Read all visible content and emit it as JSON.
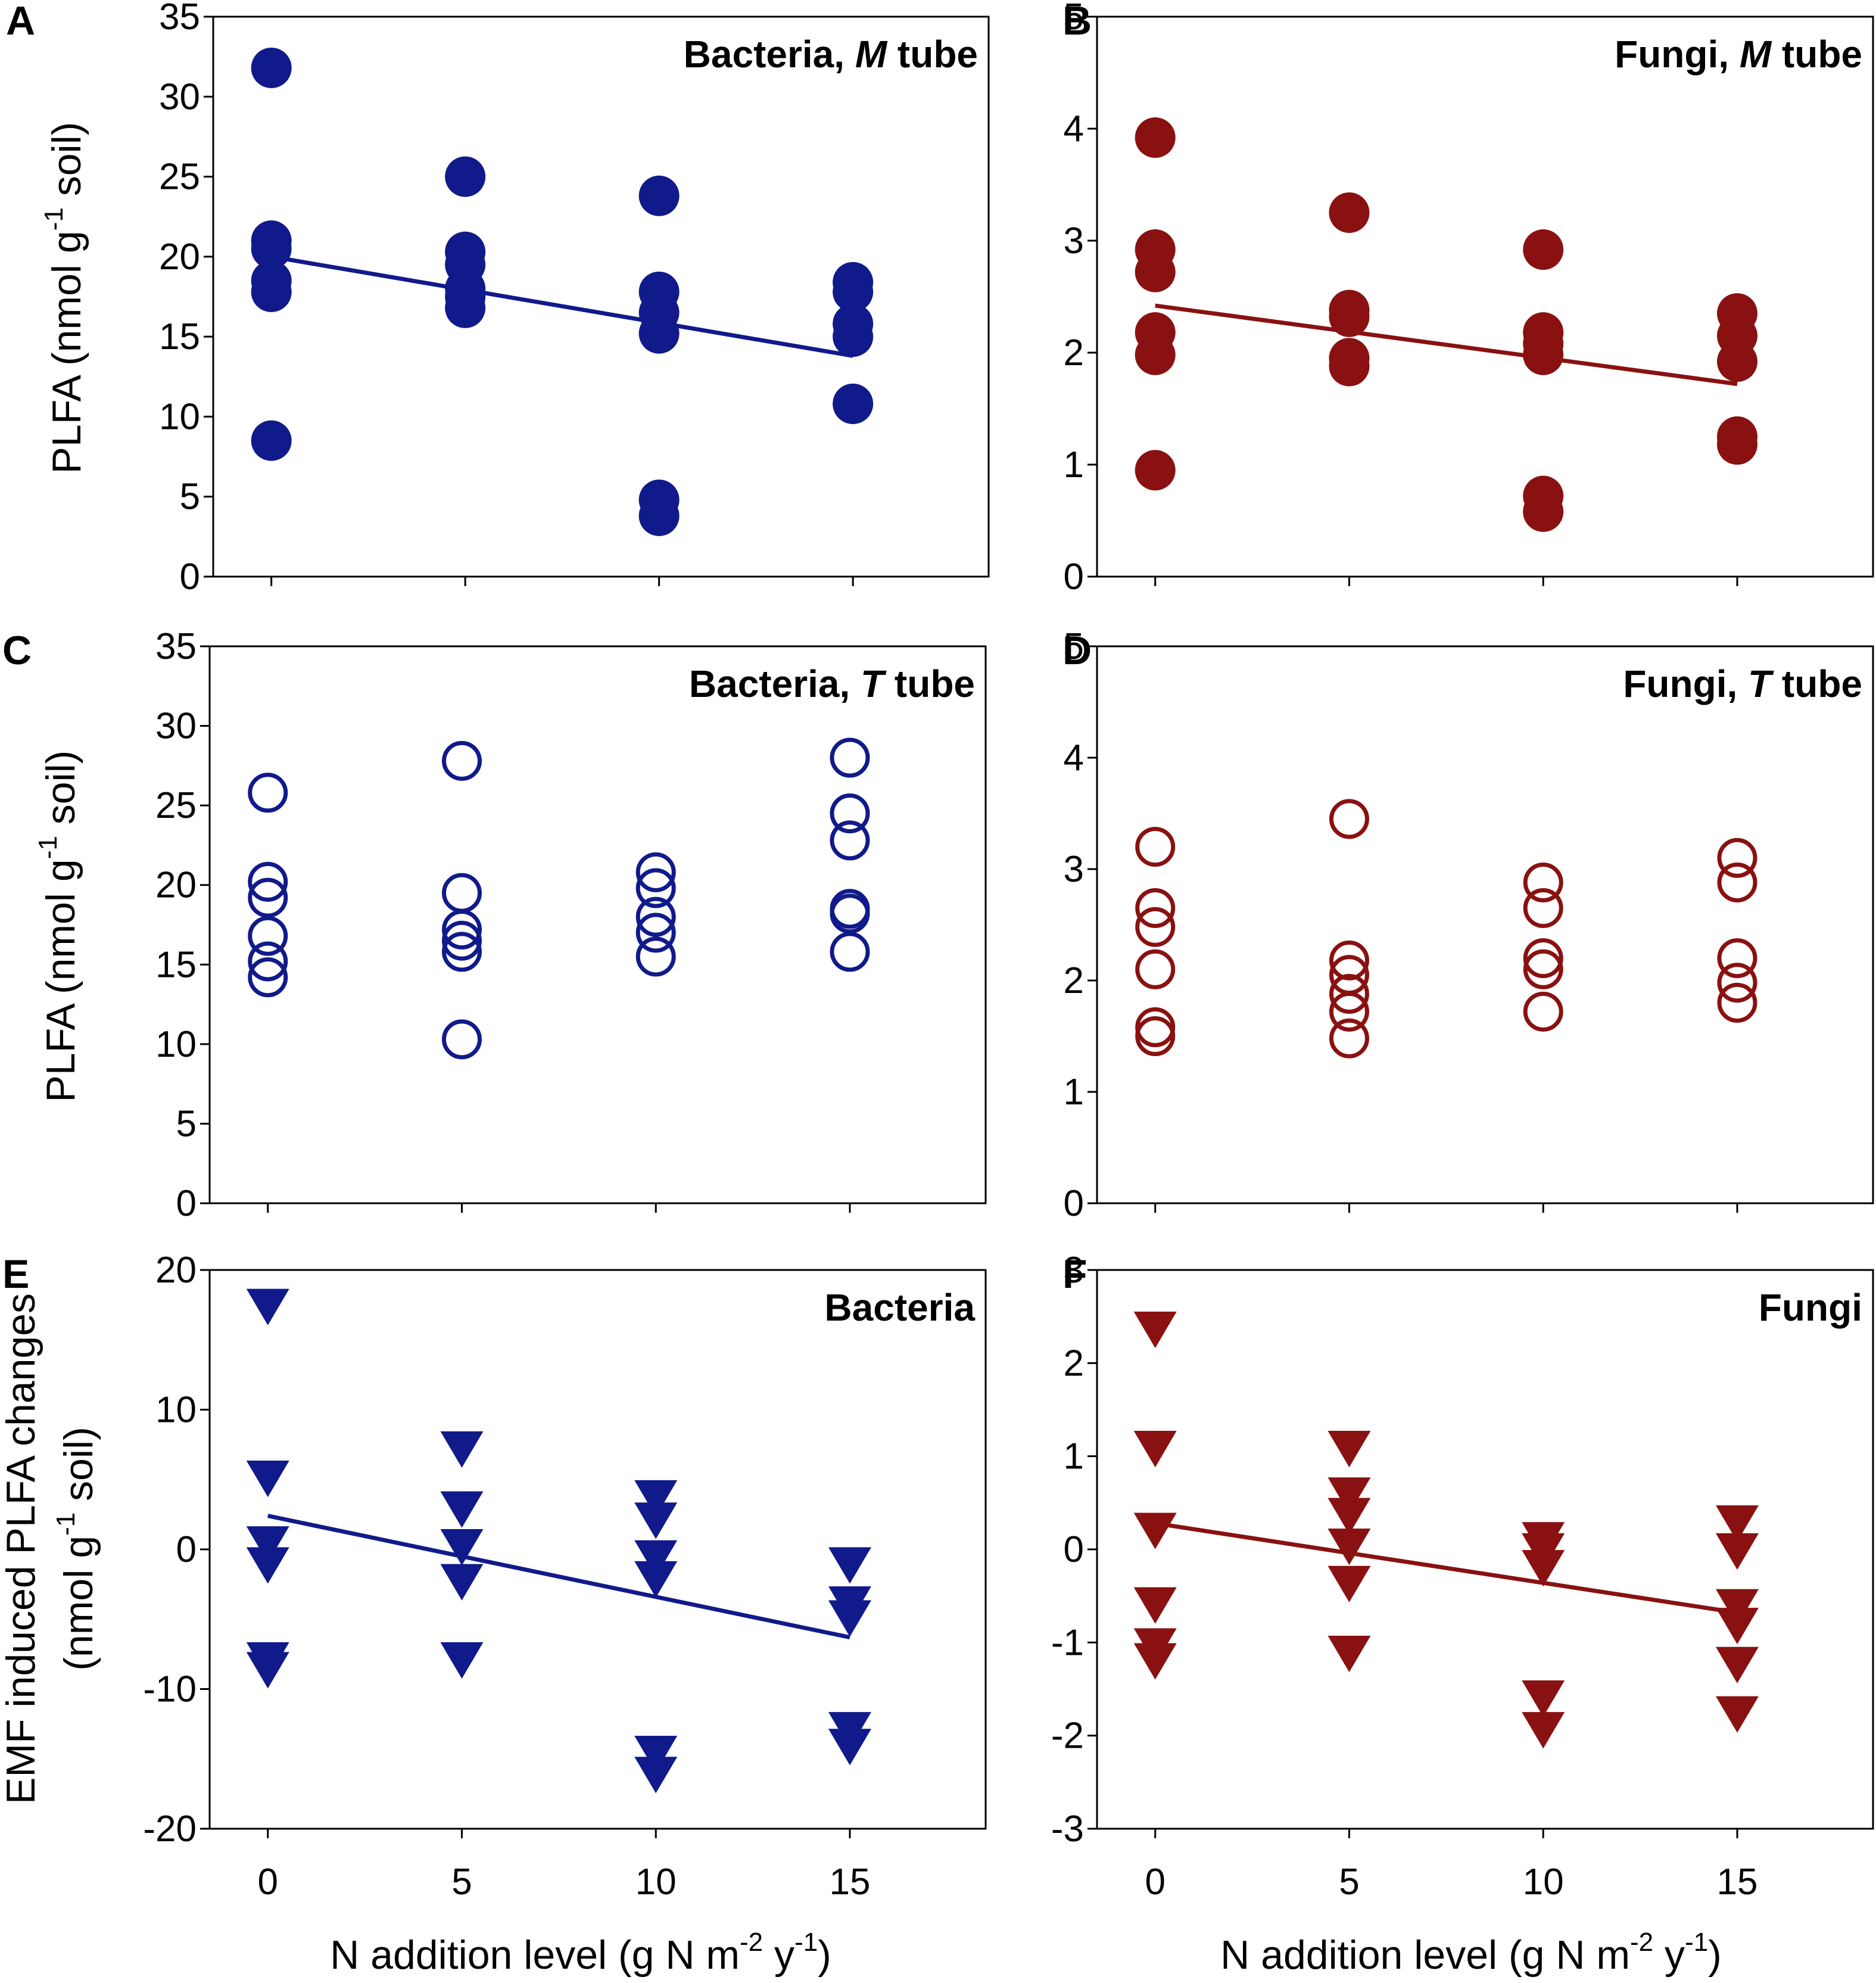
{
  "colors": {
    "bacteria": "#111a8a",
    "fungi": "#8a1111",
    "axis": "#000000"
  },
  "xlabel": {
    "main": "N addition level (g N m",
    "sup1": "-2",
    "mid": " y",
    "sup2": "-1",
    "end": ")"
  },
  "ylabel_plfa": {
    "main": "PLFA (nmol g",
    "sup": "-1",
    "end": " soil)"
  },
  "ylabel_emf": {
    "line1": "EMF induced PLFA changes",
    "main": "(nmol g",
    "sup": "-1",
    "end": " soil)"
  },
  "chart_data": [
    {
      "panel": "A",
      "type": "scatter",
      "marker": "filled-circle",
      "color": "bacteria",
      "title": "Bacteria, ",
      "title_italic": "M",
      "title_end": " tube",
      "x_ticks": [],
      "x_tick_positions": [
        0,
        5,
        10,
        15
      ],
      "ylim": [
        0,
        35
      ],
      "y_ticks": [
        0,
        5,
        10,
        15,
        20,
        25,
        30,
        35
      ],
      "ylabel": "plfa",
      "points": [
        [
          0,
          31.8
        ],
        [
          0,
          21.0
        ],
        [
          0,
          20.5
        ],
        [
          0,
          18.5
        ],
        [
          0,
          17.8
        ],
        [
          0,
          8.5
        ],
        [
          5,
          25.0
        ],
        [
          5,
          20.3
        ],
        [
          5,
          19.5
        ],
        [
          5,
          18.0
        ],
        [
          5,
          17.5
        ],
        [
          5,
          16.8
        ],
        [
          10,
          23.8
        ],
        [
          10,
          17.8
        ],
        [
          10,
          16.5
        ],
        [
          10,
          15.2
        ],
        [
          10,
          4.8
        ],
        [
          10,
          3.8
        ],
        [
          15,
          18.4
        ],
        [
          15,
          17.8
        ],
        [
          15,
          15.8
        ],
        [
          15,
          15.0
        ],
        [
          15,
          10.8
        ]
      ],
      "trend": [
        [
          0,
          20.0
        ],
        [
          15,
          13.8
        ]
      ]
    },
    {
      "panel": "B",
      "type": "scatter",
      "marker": "filled-circle",
      "color": "fungi",
      "title": "Fungi, ",
      "title_italic": "M",
      "title_end": " tube",
      "x_ticks": [],
      "x_tick_positions": [
        0,
        5,
        10,
        15
      ],
      "ylim": [
        0,
        5
      ],
      "y_ticks": [
        0,
        1,
        2,
        3,
        4,
        5
      ],
      "ylabel": "",
      "points": [
        [
          0,
          3.92
        ],
        [
          0,
          2.92
        ],
        [
          0,
          2.72
        ],
        [
          0,
          2.18
        ],
        [
          0,
          1.98
        ],
        [
          0,
          0.95
        ],
        [
          5,
          3.25
        ],
        [
          5,
          2.38
        ],
        [
          5,
          2.32
        ],
        [
          5,
          1.95
        ],
        [
          5,
          1.88
        ],
        [
          10,
          2.92
        ],
        [
          10,
          2.18
        ],
        [
          10,
          2.08
        ],
        [
          10,
          1.98
        ],
        [
          10,
          0.72
        ],
        [
          10,
          0.58
        ],
        [
          15,
          2.35
        ],
        [
          15,
          2.15
        ],
        [
          15,
          1.92
        ],
        [
          15,
          1.25
        ],
        [
          15,
          1.18
        ]
      ],
      "trend": [
        [
          0,
          2.42
        ],
        [
          15,
          1.72
        ]
      ]
    },
    {
      "panel": "C",
      "type": "scatter",
      "marker": "open-circle",
      "color": "bacteria",
      "title": "Bacteria, ",
      "title_italic": "T",
      "title_end": " tube",
      "x_ticks": [],
      "x_tick_positions": [
        0,
        5,
        10,
        15
      ],
      "ylim": [
        0,
        35
      ],
      "y_ticks": [
        0,
        5,
        10,
        15,
        20,
        25,
        30,
        35
      ],
      "ylabel": "plfa",
      "points": [
        [
          0,
          25.8
        ],
        [
          0,
          20.2
        ],
        [
          0,
          19.2
        ],
        [
          0,
          16.8
        ],
        [
          0,
          15.2
        ],
        [
          0,
          14.2
        ],
        [
          5,
          27.8
        ],
        [
          5,
          19.5
        ],
        [
          5,
          17.2
        ],
        [
          5,
          16.5
        ],
        [
          5,
          15.8
        ],
        [
          5,
          10.3
        ],
        [
          10,
          20.8
        ],
        [
          10,
          19.8
        ],
        [
          10,
          18.0
        ],
        [
          10,
          17.0
        ],
        [
          10,
          15.5
        ],
        [
          15,
          28.0
        ],
        [
          15,
          24.5
        ],
        [
          15,
          22.8
        ],
        [
          15,
          18.5
        ],
        [
          15,
          18.2
        ],
        [
          15,
          15.8
        ]
      ],
      "trend": null
    },
    {
      "panel": "D",
      "type": "scatter",
      "marker": "open-circle",
      "color": "fungi",
      "title": "Fungi, ",
      "title_italic": "T",
      "title_end": " tube",
      "x_ticks": [],
      "x_tick_positions": [
        0,
        5,
        10,
        15
      ],
      "ylim": [
        0,
        5
      ],
      "y_ticks": [
        0,
        1,
        2,
        3,
        4,
        5
      ],
      "ylabel": "",
      "points": [
        [
          0,
          3.2
        ],
        [
          0,
          2.65
        ],
        [
          0,
          2.48
        ],
        [
          0,
          2.1
        ],
        [
          0,
          1.58
        ],
        [
          0,
          1.5
        ],
        [
          5,
          3.45
        ],
        [
          5,
          2.18
        ],
        [
          5,
          2.05
        ],
        [
          5,
          1.88
        ],
        [
          5,
          1.72
        ],
        [
          5,
          1.48
        ],
        [
          10,
          2.88
        ],
        [
          10,
          2.65
        ],
        [
          10,
          2.2
        ],
        [
          10,
          2.1
        ],
        [
          10,
          1.72
        ],
        [
          15,
          3.1
        ],
        [
          15,
          2.88
        ],
        [
          15,
          2.2
        ],
        [
          15,
          1.98
        ],
        [
          15,
          1.8
        ]
      ],
      "trend": null
    },
    {
      "panel": "E",
      "type": "scatter",
      "marker": "filled-triangle-down",
      "color": "bacteria",
      "title": "Bacteria",
      "title_italic": "",
      "title_end": "",
      "x_ticks": [
        "0",
        "5",
        "10",
        "15"
      ],
      "x_tick_positions": [
        0,
        5,
        10,
        15
      ],
      "ylim": [
        -20,
        20
      ],
      "y_ticks": [
        -20,
        -10,
        0,
        10,
        20
      ],
      "ylabel": "emf",
      "points": [
        [
          0,
          17.5
        ],
        [
          0,
          5.2
        ],
        [
          0,
          0.5
        ],
        [
          0,
          -1.0
        ],
        [
          0,
          -7.8
        ],
        [
          0,
          -8.5
        ],
        [
          5,
          7.3
        ],
        [
          5,
          3.0
        ],
        [
          5,
          0.3
        ],
        [
          5,
          -2.2
        ],
        [
          5,
          -7.8
        ],
        [
          10,
          3.8
        ],
        [
          10,
          2.2
        ],
        [
          10,
          -0.5
        ],
        [
          10,
          -2.0
        ],
        [
          10,
          -14.5
        ],
        [
          10,
          -16.0
        ],
        [
          15,
          -1.0
        ],
        [
          15,
          -3.8
        ],
        [
          15,
          -4.8
        ],
        [
          15,
          -12.8
        ],
        [
          15,
          -14.0
        ]
      ],
      "trend": [
        [
          0,
          2.4
        ],
        [
          15,
          -6.3
        ]
      ]
    },
    {
      "panel": "F",
      "type": "scatter",
      "marker": "filled-triangle-down",
      "color": "fungi",
      "title": "Fungi",
      "title_italic": "",
      "title_end": "",
      "x_ticks": [
        "0",
        "5",
        "10",
        "15"
      ],
      "x_tick_positions": [
        0,
        5,
        10,
        15
      ],
      "ylim": [
        -3,
        3
      ],
      "y_ticks": [
        -3,
        -2,
        -1,
        0,
        1,
        2,
        3
      ],
      "ylabel": "",
      "points": [
        [
          0,
          2.38
        ],
        [
          0,
          1.1
        ],
        [
          0,
          0.22
        ],
        [
          0,
          -0.58
        ],
        [
          0,
          -1.02
        ],
        [
          0,
          -1.18
        ],
        [
          5,
          1.1
        ],
        [
          5,
          0.6
        ],
        [
          5,
          0.38
        ],
        [
          5,
          0.05
        ],
        [
          5,
          -0.35
        ],
        [
          5,
          -1.1
        ],
        [
          10,
          0.12
        ],
        [
          10,
          0.0
        ],
        [
          10,
          -0.18
        ],
        [
          10,
          -1.58
        ],
        [
          10,
          -1.92
        ],
        [
          15,
          0.3
        ],
        [
          15,
          0.0
        ],
        [
          15,
          -0.6
        ],
        [
          15,
          -0.8
        ],
        [
          15,
          -1.22
        ],
        [
          15,
          -1.75
        ]
      ],
      "trend": [
        [
          0,
          0.28
        ],
        [
          15,
          -0.68
        ]
      ]
    }
  ]
}
